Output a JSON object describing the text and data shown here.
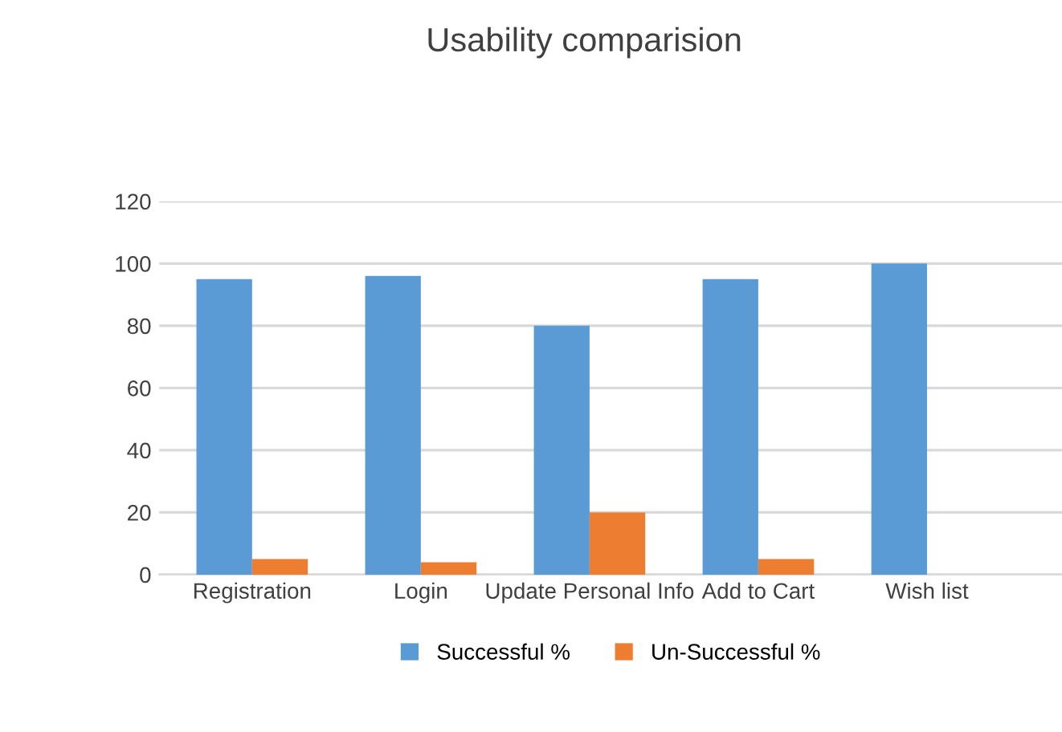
{
  "chart_data": {
    "type": "bar",
    "title": "Usability comparision",
    "categories": [
      "Registration",
      "Login",
      "Update Personal Info",
      "Add to Cart",
      "Wish list"
    ],
    "series": [
      {
        "name": "Successful %",
        "color": "#5b9bd5",
        "values": [
          95,
          96,
          80,
          95,
          100
        ]
      },
      {
        "name": "Un-Successful %",
        "color": "#ed7d31",
        "values": [
          5,
          4,
          20,
          5,
          0
        ]
      }
    ],
    "ylim": [
      0,
      120
    ],
    "yticks": [
      0,
      20,
      40,
      60,
      80,
      100,
      120
    ],
    "grid": "y",
    "legend": "bottom"
  }
}
